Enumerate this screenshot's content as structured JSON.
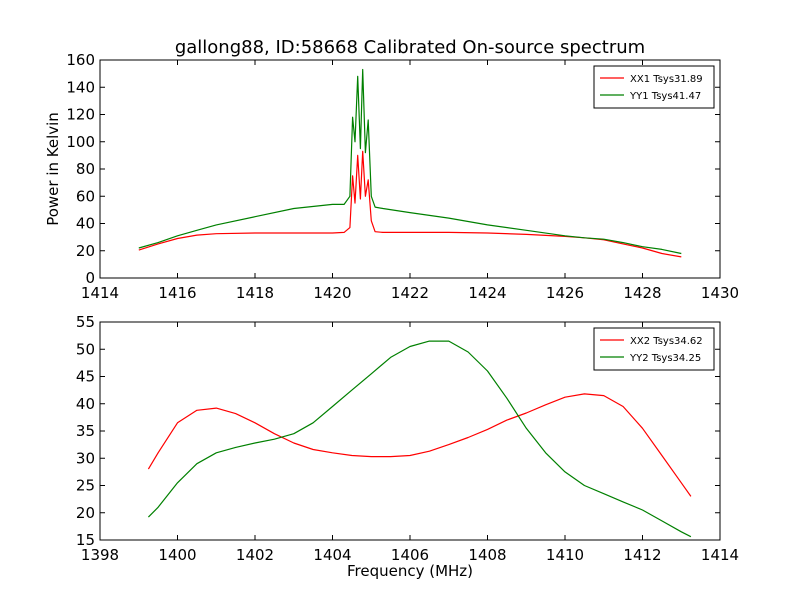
{
  "chart_data": [
    {
      "type": "line",
      "title": "gallong88, ID:58668 Calibrated On-source spectrum",
      "xlabel": "",
      "ylabel": "Power in Kelvin",
      "xlim": [
        1414,
        1430
      ],
      "ylim": [
        0,
        160
      ],
      "xticks": [
        "1414",
        "1416",
        "1418",
        "1420",
        "1422",
        "1424",
        "1426",
        "1428",
        "1430"
      ],
      "yticks": [
        "0",
        "20",
        "40",
        "60",
        "80",
        "100",
        "120",
        "140",
        "160"
      ],
      "grid": false,
      "legend_position": "top-right",
      "series": [
        {
          "name": "XX1 Tsys31.89",
          "color": "#ff0000",
          "x": [
            1415.0,
            1415.5,
            1416.0,
            1416.5,
            1417.0,
            1418.0,
            1419.0,
            1420.0,
            1420.3,
            1420.45,
            1420.52,
            1420.58,
            1420.65,
            1420.72,
            1420.78,
            1420.85,
            1420.92,
            1421.0,
            1421.1,
            1421.3,
            1422.0,
            1423.0,
            1424.0,
            1425.0,
            1426.0,
            1426.5,
            1427.0,
            1427.5,
            1428.0,
            1428.5,
            1429.0
          ],
          "y": [
            20.5,
            25,
            29,
            31.5,
            32.5,
            33,
            33,
            33,
            33.5,
            37,
            75,
            55,
            90,
            58,
            93,
            60,
            72,
            42,
            34,
            33.5,
            33.5,
            33.5,
            33,
            32,
            30.5,
            29.5,
            28,
            25,
            22,
            18,
            15.5
          ]
        },
        {
          "name": "YY1 Tsys41.47",
          "color": "#008000",
          "x": [
            1415.0,
            1415.5,
            1416.0,
            1416.5,
            1417.0,
            1418.0,
            1419.0,
            1420.0,
            1420.3,
            1420.45,
            1420.52,
            1420.58,
            1420.65,
            1420.72,
            1420.78,
            1420.85,
            1420.92,
            1421.0,
            1421.1,
            1421.3,
            1422.0,
            1423.0,
            1424.0,
            1425.0,
            1426.0,
            1426.5,
            1427.0,
            1427.5,
            1428.0,
            1428.5,
            1429.0
          ],
          "y": [
            22,
            26,
            31,
            35,
            39,
            45,
            51,
            54,
            54,
            60,
            118,
            100,
            148,
            95,
            153,
            92,
            116,
            60,
            52,
            51,
            48,
            44,
            39,
            35,
            31,
            29.5,
            28.5,
            26,
            23,
            21,
            18
          ]
        }
      ]
    },
    {
      "type": "line",
      "title": "",
      "xlabel": "Frequency (MHz)",
      "ylabel": "",
      "xlim": [
        1398,
        1414
      ],
      "ylim": [
        15,
        55
      ],
      "xticks": [
        "1398",
        "1400",
        "1402",
        "1404",
        "1406",
        "1408",
        "1410",
        "1412",
        "1414"
      ],
      "yticks": [
        "15",
        "20",
        "25",
        "30",
        "35",
        "40",
        "45",
        "50",
        "55"
      ],
      "grid": false,
      "legend_position": "top-right",
      "series": [
        {
          "name": "XX2 Tsys34.62",
          "color": "#ff0000",
          "x": [
            1399.25,
            1399.5,
            1400.0,
            1400.5,
            1401.0,
            1401.5,
            1402.0,
            1402.5,
            1403.0,
            1403.5,
            1404.0,
            1404.5,
            1405.0,
            1405.5,
            1406.0,
            1406.5,
            1407.0,
            1407.5,
            1408.0,
            1408.5,
            1409.0,
            1409.5,
            1410.0,
            1410.5,
            1411.0,
            1411.5,
            1412.0,
            1412.5,
            1413.0,
            1413.25
          ],
          "y": [
            28,
            31,
            36.5,
            38.8,
            39.2,
            38.2,
            36.5,
            34.5,
            32.8,
            31.6,
            31,
            30.5,
            30.3,
            30.3,
            30.5,
            31.3,
            32.5,
            33.8,
            35.3,
            37,
            38.3,
            39.8,
            41.2,
            41.8,
            41.5,
            39.5,
            35.5,
            30.5,
            25.5,
            23
          ]
        },
        {
          "name": "YY2 Tsys34.25",
          "color": "#008000",
          "x": [
            1399.25,
            1399.5,
            1400.0,
            1400.5,
            1401.0,
            1401.5,
            1402.0,
            1402.5,
            1403.0,
            1403.5,
            1404.0,
            1404.5,
            1405.0,
            1405.5,
            1406.0,
            1406.5,
            1407.0,
            1407.5,
            1408.0,
            1408.5,
            1409.0,
            1409.5,
            1410.0,
            1410.5,
            1411.0,
            1411.5,
            1412.0,
            1412.5,
            1413.0,
            1413.25
          ],
          "y": [
            19.2,
            21,
            25.5,
            29,
            31,
            32,
            32.8,
            33.5,
            34.5,
            36.5,
            39.5,
            42.5,
            45.5,
            48.5,
            50.5,
            51.5,
            51.5,
            49.5,
            46,
            41,
            35.5,
            31,
            27.5,
            25,
            23.5,
            22,
            20.5,
            18.5,
            16.5,
            15.6
          ]
        }
      ]
    }
  ]
}
